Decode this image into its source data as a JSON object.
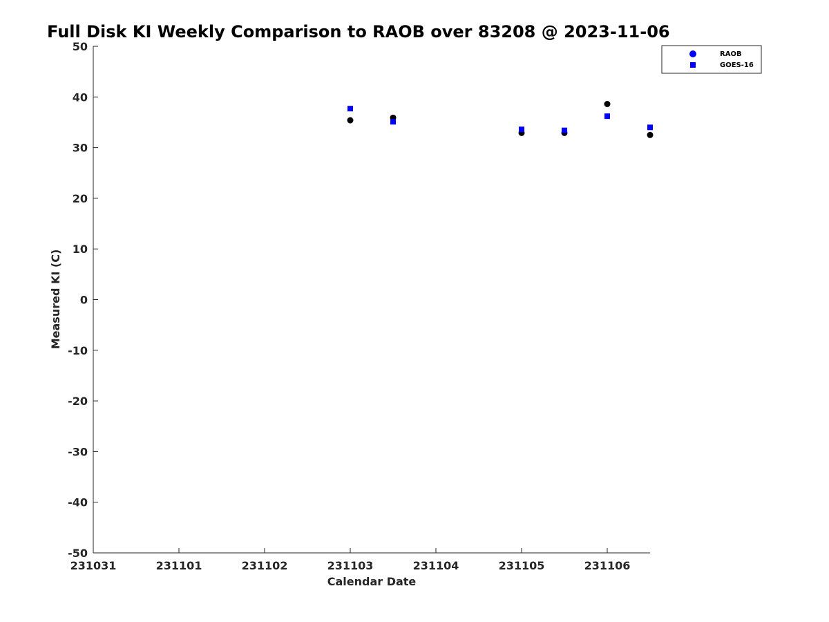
{
  "chart_data": {
    "type": "scatter",
    "title": "Full Disk KI Weekly Comparison to RAOB over 83208 @ 2023-11-06",
    "xlabel": "Calendar Date",
    "ylabel": "Measured KI (C)",
    "x_tick_labels": [
      "231031",
      "231101",
      "231102",
      "231103",
      "231104",
      "231105",
      "231106"
    ],
    "x_ticks": [
      "2023-10-31",
      "2023-11-01",
      "2023-11-02",
      "2023-11-03",
      "2023-11-04",
      "2023-11-05",
      "2023-11-06"
    ],
    "xlim": [
      "2023-10-31T00:00",
      "2023-11-06T12:00"
    ],
    "ylim": [
      -50,
      50
    ],
    "y_ticks": [
      50,
      40,
      30,
      20,
      10,
      0,
      -10,
      -20,
      -30,
      -40,
      -50
    ],
    "legend_position": "top-right",
    "grid": false,
    "series": [
      {
        "name": "RAOB",
        "marker": "circle",
        "marker_color": "#000000",
        "legend_color": "#0000ff",
        "points": [
          {
            "x": "2023-11-03T00:00",
            "y": 35.4
          },
          {
            "x": "2023-11-03T12:00",
            "y": 35.9
          },
          {
            "x": "2023-11-05T00:00",
            "y": 32.9
          },
          {
            "x": "2023-11-05T12:00",
            "y": 32.9
          },
          {
            "x": "2023-11-06T00:00",
            "y": 38.6
          },
          {
            "x": "2023-11-06T12:00",
            "y": 32.5
          }
        ]
      },
      {
        "name": "GOES-16",
        "marker": "square",
        "marker_color": "#0000ff",
        "legend_color": "#0000ff",
        "points": [
          {
            "x": "2023-11-03T00:00",
            "y": 37.7
          },
          {
            "x": "2023-11-03T12:00",
            "y": 35.1
          },
          {
            "x": "2023-11-05T00:00",
            "y": 33.6
          },
          {
            "x": "2023-11-05T12:00",
            "y": 33.4
          },
          {
            "x": "2023-11-06T00:00",
            "y": 36.2
          },
          {
            "x": "2023-11-06T12:00",
            "y": 34.0
          }
        ]
      }
    ]
  }
}
